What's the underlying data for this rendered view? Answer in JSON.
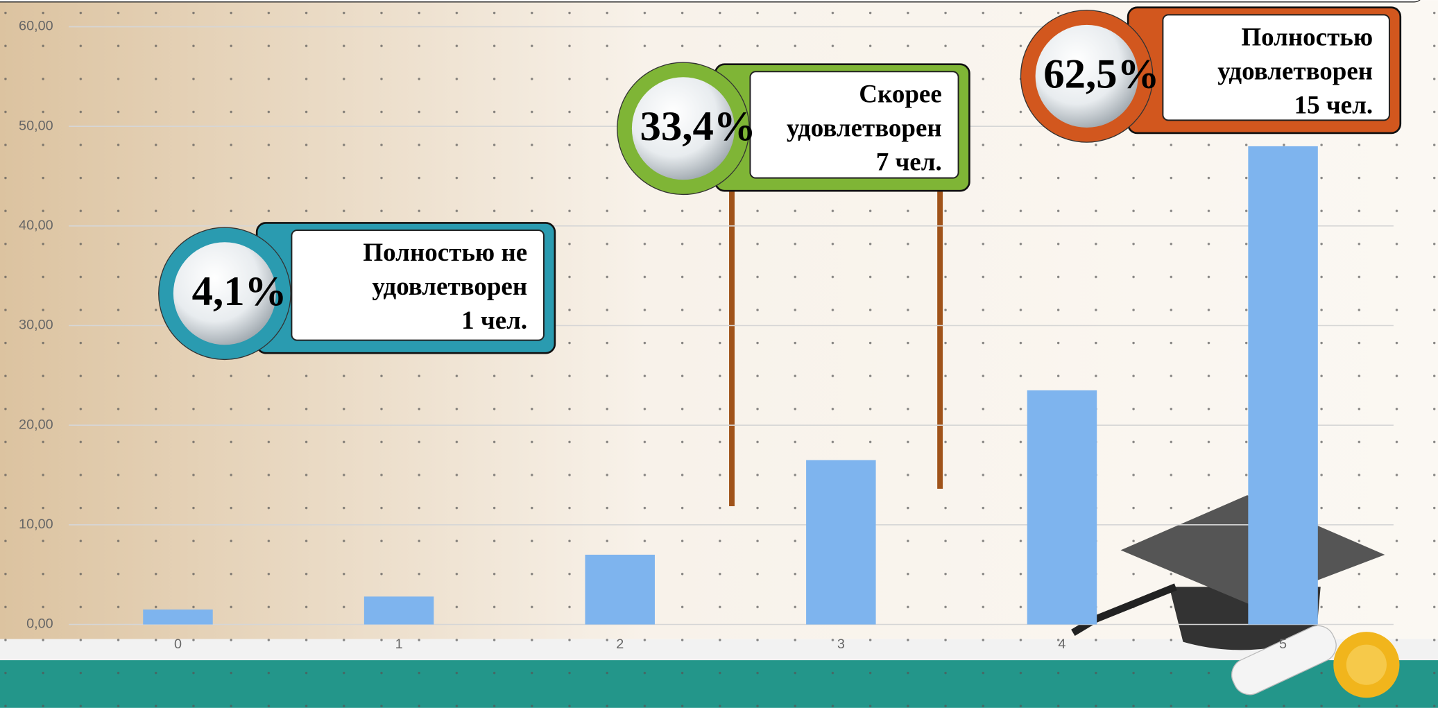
{
  "chart_data": {
    "type": "bar",
    "categories": [
      "0",
      "1",
      "2",
      "3",
      "4",
      "5"
    ],
    "values": [
      1.5,
      2.8,
      7,
      16.5,
      23.5,
      48
    ],
    "color": "#7eb4ee",
    "ylim": [
      0,
      60
    ],
    "yticks": [
      {
        "value": 0,
        "label": "0,00"
      },
      {
        "value": 10,
        "label": "10,00"
      },
      {
        "value": 20,
        "label": "20,00"
      },
      {
        "value": 30,
        "label": "30,00"
      },
      {
        "value": 40,
        "label": "40,00"
      },
      {
        "value": 50,
        "label": "50,00"
      },
      {
        "value": 60,
        "label": "60,00"
      }
    ],
    "grid": true,
    "annotations": [
      {
        "percent": "4,1%",
        "lines": [
          "Полностью не",
          "удовлетворен",
          "1 чел."
        ],
        "color": "#2a9bb0"
      },
      {
        "percent": "33,4%",
        "lines": [
          "Скорее",
          "удовлетворен",
          "7 чел."
        ],
        "color": "#7fb536"
      },
      {
        "percent": "62,5%",
        "lines": [
          "Полностью",
          "удовлетворен",
          "15 чел."
        ],
        "color": "#d2571e"
      }
    ]
  }
}
